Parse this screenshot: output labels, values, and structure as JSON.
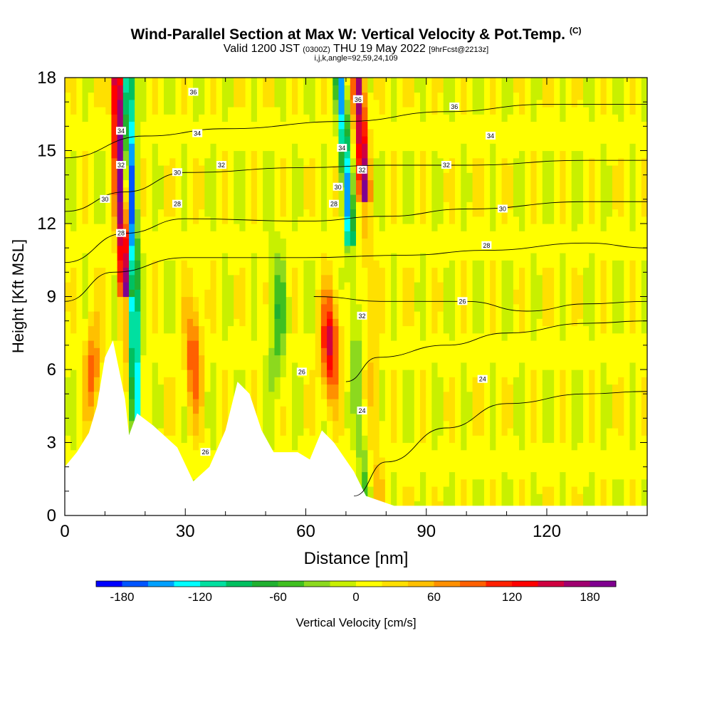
{
  "title": {
    "main": "Wind-Parallel Section at Max W: Vertical Velocity & Pot.Temp.",
    "copyright": "(C)",
    "valid_prefix": "Valid 1200 JST",
    "valid_utc": "(0300Z)",
    "valid_date": "THU 19 May 2022",
    "forecast": "[9hrFcst@2213z]",
    "indices": "i,j,k,angle=92,59,24,109"
  },
  "chart_data": {
    "type": "heatmap",
    "xlabel": "Distance [nm]",
    "ylabel": "Height [Kft MSL]",
    "xlim": [
      0,
      145
    ],
    "ylim": [
      0,
      18
    ],
    "x_ticks": [
      "0",
      "30",
      "60",
      "90",
      "120"
    ],
    "x_tick_values": [
      0,
      30,
      60,
      90,
      120
    ],
    "y_ticks": [
      "0",
      "3",
      "6",
      "9",
      "12",
      "15",
      "18"
    ],
    "y_tick_values": [
      0,
      3,
      6,
      9,
      12,
      15,
      18
    ],
    "colorbar": {
      "label": "Vertical Velocity [cm/s]",
      "tick_labels": [
        "-180",
        "-120",
        "-60",
        "0",
        "60",
        "120",
        "180"
      ],
      "tick_values": [
        -180,
        -120,
        -60,
        0,
        60,
        120,
        180
      ],
      "range": [
        -200,
        200
      ],
      "colors": [
        "#0000ff",
        "#0055ff",
        "#00a0ff",
        "#00ffff",
        "#00e0a0",
        "#00c060",
        "#20b030",
        "#40c020",
        "#8cd91e",
        "#c8f000",
        "#ffff00",
        "#ffe000",
        "#ffc000",
        "#ff9000",
        "#ff6000",
        "#ff2000",
        "#ff0000",
        "#d00040",
        "#a00070",
        "#800090"
      ]
    },
    "theta_contours_K": [
      {
        "value": 24,
        "points": [
          [
            72,
            0.8
          ],
          [
            80,
            2.2
          ],
          [
            95,
            3.6
          ],
          [
            110,
            4.6
          ],
          [
            130,
            5.0
          ],
          [
            145,
            5.1
          ]
        ]
      },
      {
        "value": 26,
        "points": [
          [
            70,
            5.5
          ],
          [
            78,
            6.5
          ],
          [
            95,
            7.0
          ],
          [
            110,
            7.5
          ],
          [
            130,
            7.9
          ],
          [
            145,
            8.0
          ]
        ]
      },
      {
        "value": 28,
        "points": [
          [
            62,
            9.0
          ],
          [
            80,
            8.8
          ],
          [
            100,
            8.8
          ],
          [
            115,
            8.4
          ],
          [
            130,
            8.7
          ],
          [
            145,
            8.8
          ]
        ]
      },
      {
        "value": 30,
        "points": [
          [
            0,
            8.8
          ],
          [
            12,
            10.0
          ],
          [
            30,
            10.6
          ],
          [
            60,
            10.6
          ],
          [
            85,
            10.7
          ],
          [
            105,
            10.9
          ],
          [
            130,
            11.2
          ],
          [
            145,
            11.0
          ]
        ]
      },
      {
        "value": 32,
        "points": [
          [
            0,
            10.4
          ],
          [
            15,
            11.6
          ],
          [
            30,
            12.2
          ],
          [
            60,
            12.1
          ],
          [
            80,
            12.3
          ],
          [
            100,
            12.6
          ],
          [
            130,
            12.9
          ],
          [
            145,
            12.9
          ]
        ]
      },
      {
        "value": 34,
        "points": [
          [
            0,
            12.5
          ],
          [
            15,
            13.3
          ],
          [
            30,
            14.1
          ],
          [
            60,
            14.3
          ],
          [
            80,
            14.4
          ],
          [
            100,
            14.4
          ],
          [
            130,
            14.6
          ],
          [
            145,
            14.6
          ]
        ]
      },
      {
        "value": 36,
        "points": [
          [
            0,
            14.7
          ],
          [
            20,
            15.6
          ],
          [
            40,
            15.9
          ],
          [
            70,
            16.2
          ],
          [
            95,
            16.6
          ],
          [
            120,
            16.9
          ],
          [
            145,
            16.9
          ]
        ]
      }
    ],
    "contour_labels": [
      {
        "text": "36",
        "x": 32,
        "y": 17.4
      },
      {
        "text": "34",
        "x": 33,
        "y": 15.7
      },
      {
        "text": "32",
        "x": 39,
        "y": 14.4
      },
      {
        "text": "30",
        "x": 28,
        "y": 14.1
      },
      {
        "text": "28",
        "x": 28,
        "y": 12.8
      },
      {
        "text": "34",
        "x": 14,
        "y": 15.8
      },
      {
        "text": "32",
        "x": 14,
        "y": 14.4
      },
      {
        "text": "30",
        "x": 10,
        "y": 13.0
      },
      {
        "text": "28",
        "x": 14,
        "y": 11.6
      },
      {
        "text": "36",
        "x": 73,
        "y": 17.1
      },
      {
        "text": "34",
        "x": 69,
        "y": 15.1
      },
      {
        "text": "32",
        "x": 74,
        "y": 14.2
      },
      {
        "text": "30",
        "x": 68,
        "y": 13.5
      },
      {
        "text": "28",
        "x": 67,
        "y": 12.8
      },
      {
        "text": "36",
        "x": 97,
        "y": 16.8
      },
      {
        "text": "34",
        "x": 106,
        "y": 15.6
      },
      {
        "text": "32",
        "x": 95,
        "y": 14.4
      },
      {
        "text": "30",
        "x": 109,
        "y": 12.6
      },
      {
        "text": "28",
        "x": 105,
        "y": 11.1
      },
      {
        "text": "26",
        "x": 99,
        "y": 8.8
      },
      {
        "text": "24",
        "x": 104,
        "y": 5.6
      },
      {
        "text": "24",
        "x": 74,
        "y": 4.3
      },
      {
        "text": "26",
        "x": 59,
        "y": 5.9
      },
      {
        "text": "26",
        "x": 35,
        "y": 2.6
      },
      {
        "text": "32",
        "x": 74,
        "y": 8.2
      }
    ]
  }
}
